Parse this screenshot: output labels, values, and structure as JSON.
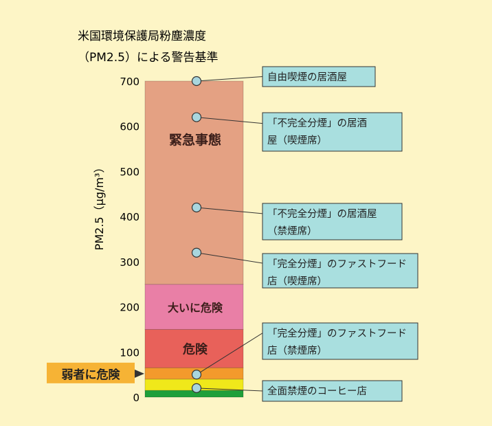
{
  "chart_data": {
    "type": "bar",
    "title": [
      "米国環境保護局粉塵濃度",
      "（PM2.5）による警告基準"
    ],
    "ylabel": "PM2.5（μg/m³）",
    "ylim": [
      0,
      700
    ],
    "yticks": [
      0,
      100,
      200,
      300,
      400,
      500,
      600,
      700
    ],
    "bands": [
      {
        "from": 0,
        "to": 15,
        "color": "#1f9f3a",
        "label": ""
      },
      {
        "from": 15,
        "to": 40,
        "color": "#f0e81a",
        "label": ""
      },
      {
        "from": 40,
        "to": 65,
        "color": "#f39a2c",
        "label": ""
      },
      {
        "from": 65,
        "to": 150,
        "color": "#e8615a",
        "label": "危険"
      },
      {
        "from": 150,
        "to": 250,
        "color": "#e97fa6",
        "label": "大いに危険"
      },
      {
        "from": 250,
        "to": 700,
        "color": "#e4a183",
        "label": "緊急事態"
      }
    ],
    "side_label": {
      "text": "弱者に危険",
      "value": 52
    },
    "points": [
      {
        "value": 700,
        "label": [
          "自由喫煙の居酒屋"
        ]
      },
      {
        "value": 620,
        "label": [
          "「不完全分煙」の居酒",
          "屋（喫煙席）"
        ]
      },
      {
        "value": 420,
        "label": [
          "「不完全分煙」の居酒屋",
          "（禁煙席）"
        ]
      },
      {
        "value": 320,
        "label": [
          "「完全分煙」のファストフード",
          "店（喫煙席）"
        ]
      },
      {
        "value": 50,
        "label": [
          "「完全分煙」のファストフード",
          "店（禁煙席）"
        ]
      },
      {
        "value": 20,
        "label": [
          "全面禁煙のコーヒー店"
        ]
      }
    ]
  },
  "colors": {
    "background": "#fdf5c6",
    "callout_fill": "#a9dfdf",
    "callout_stroke": "#333333",
    "point_fill": "#a9d6de",
    "side_label_fill": "#f6b335"
  }
}
